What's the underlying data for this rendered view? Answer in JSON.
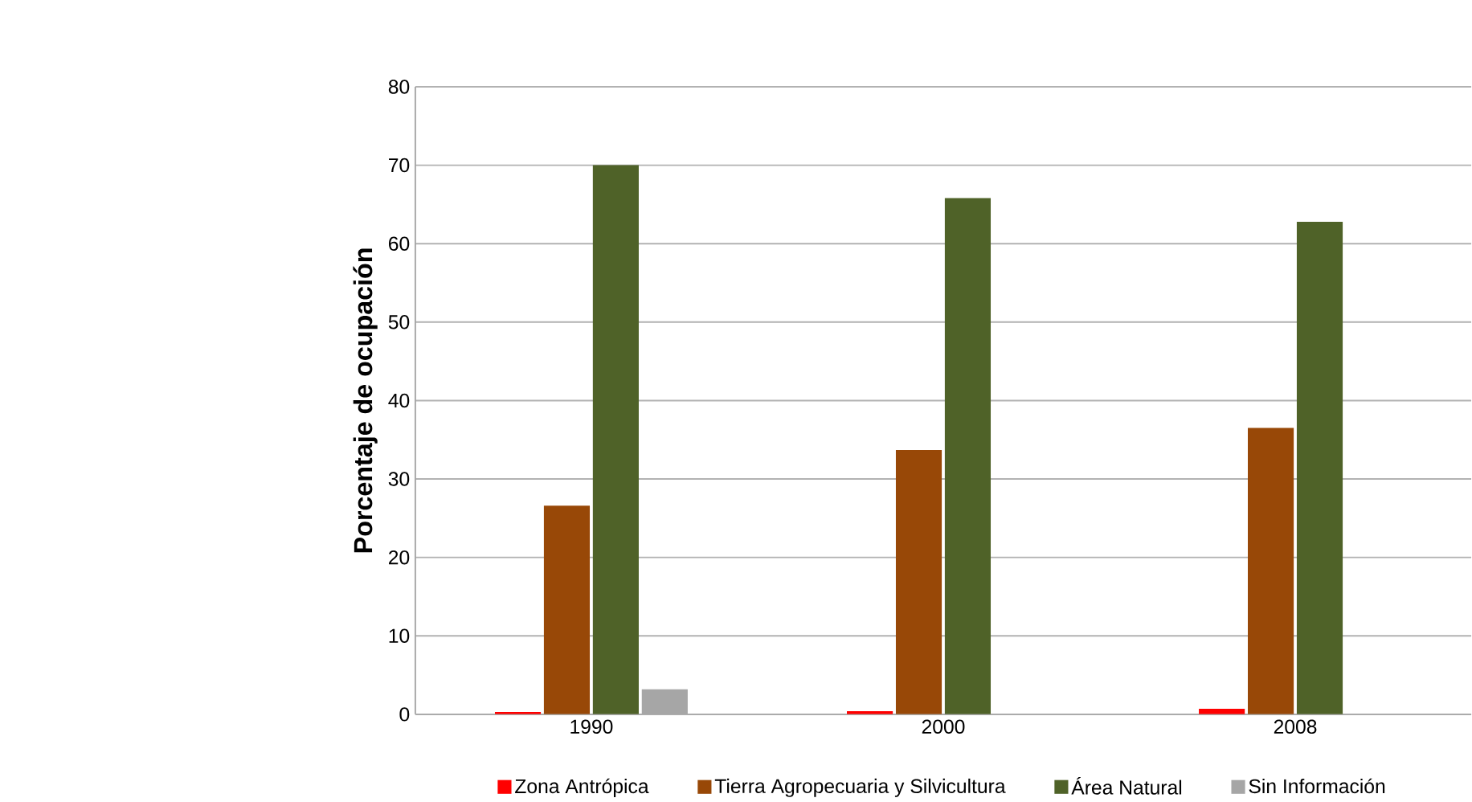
{
  "chart_data": {
    "type": "bar",
    "ylabel": "Porcentaje de ocupación",
    "categories": [
      "1990",
      "2000",
      "2008"
    ],
    "series": [
      {
        "name": "Zona Antrópica",
        "color": "#ff0000",
        "values": [
          0.3,
          0.4,
          0.7
        ]
      },
      {
        "name": "Tierra Agropecuaria y Silvicultura",
        "color": "#984807",
        "values": [
          26.6,
          33.7,
          36.5
        ]
      },
      {
        "name": "Área Natural",
        "color": "#4f6228",
        "values": [
          70.0,
          65.8,
          62.8
        ]
      },
      {
        "name": "Sin Información",
        "color": "#a6a6a6",
        "values": [
          3.2,
          0,
          0
        ]
      }
    ],
    "ylim": [
      0,
      80
    ],
    "yticks": [
      0,
      10,
      20,
      30,
      40,
      50,
      60,
      70,
      80
    ],
    "grid": "y",
    "legend": "bottom"
  }
}
